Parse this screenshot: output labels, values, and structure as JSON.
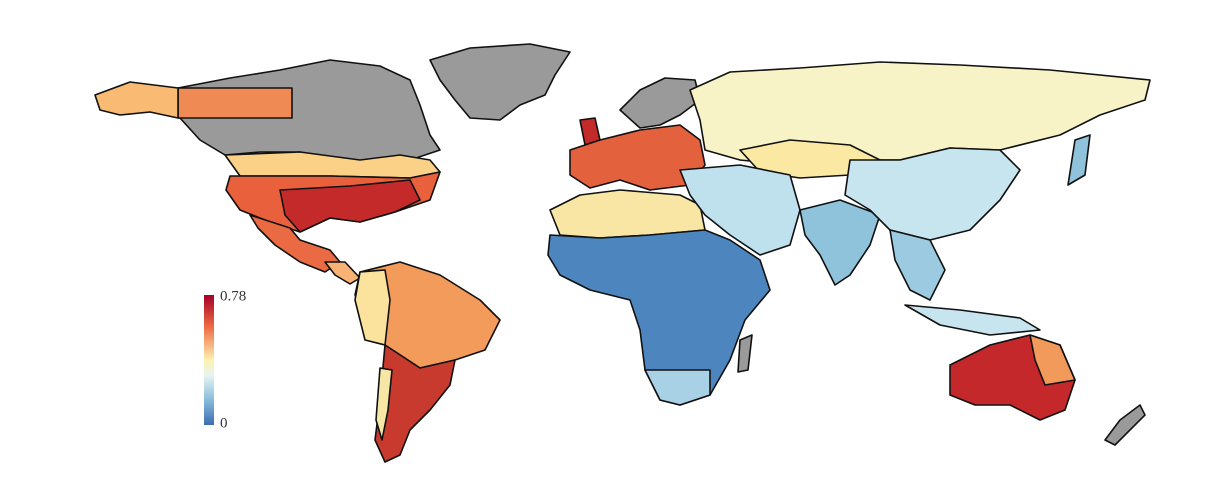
{
  "colorbar": {
    "max": "0.78",
    "min": "0"
  }
}
